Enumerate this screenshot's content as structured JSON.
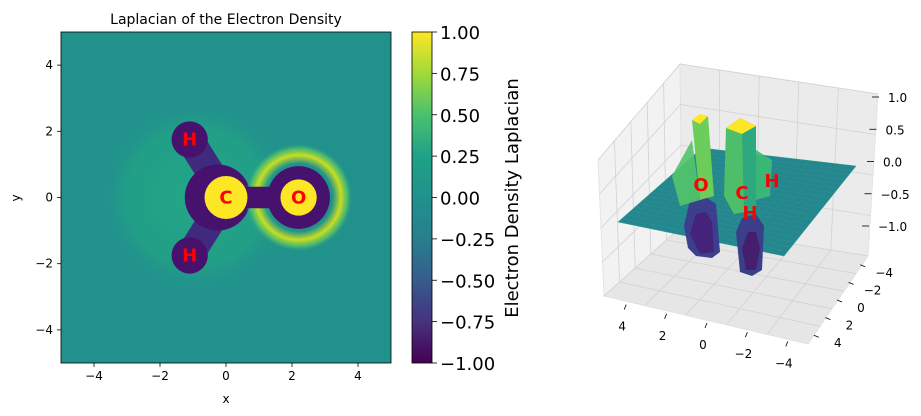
{
  "chart_data": [
    {
      "type": "heatmap",
      "title": "Laplacian of the Electron Density",
      "xlabel": "x",
      "ylabel": "y",
      "xlim": [
        -5,
        5
      ],
      "ylim": [
        -5,
        5
      ],
      "xticks": [
        -4,
        -2,
        0,
        2,
        4
      ],
      "yticks": [
        -4,
        -2,
        0,
        2,
        4
      ],
      "colormap": "viridis",
      "color_range": [
        -1,
        1
      ],
      "colorbar": {
        "label": "Electron Density Laplacian",
        "ticks": [
          "1.00",
          "0.75",
          "0.50",
          "0.25",
          "0.00",
          "−0.25",
          "−0.50",
          "−0.75",
          "−1.00"
        ],
        "tick_values": [
          1,
          0.75,
          0.5,
          0.25,
          0,
          -0.25,
          -0.5,
          -0.75,
          -1
        ]
      },
      "atoms": [
        {
          "label": "H",
          "x": -1.1,
          "y": 1.75
        },
        {
          "label": "C",
          "x": 0.0,
          "y": 0.0
        },
        {
          "label": "O",
          "x": 2.2,
          "y": 0.0
        },
        {
          "label": "H",
          "x": -1.1,
          "y": -1.75
        }
      ],
      "atom_label_color": "#ff0000"
    },
    {
      "type": "surface",
      "xlim": [
        -5,
        5
      ],
      "ylim": [
        -5,
        5
      ],
      "zlim": [
        -1,
        1
      ],
      "x_tick_labels": [
        "4",
        "2",
        "0",
        "−2",
        "−4"
      ],
      "y_tick_labels": [
        "−4",
        "−2",
        "0",
        "2",
        "4"
      ],
      "z_tick_labels": [
        "1.0",
        "0.5",
        "0.0",
        "−0.5",
        "−1.0"
      ],
      "atom_labels": [
        "O",
        "C",
        "H",
        "H"
      ],
      "atom_label_color": "#ff0000"
    }
  ]
}
